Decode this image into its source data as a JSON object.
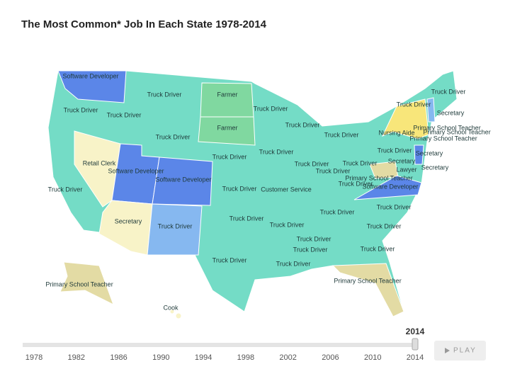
{
  "title": "The Most Common* Job In Each State 1978-2014",
  "map_labels": [
    "Software Developer",
    "Truck Driver",
    "Truck Driver",
    "Truck Driver",
    "Farmer",
    "Farmer",
    "Truck Driver",
    "Truck Driver",
    "Truck Driver",
    "Truck Driver",
    "Retail Clerk",
    "Software Developer",
    "Software Developer",
    "Truck Driver",
    "Truck Driver",
    "Truck Driver",
    "Truck Driver",
    "Truck Driver",
    "Truck Driver",
    "Customer Service",
    "Secretary",
    "Truck Driver",
    "Truck Driver",
    "Truck Driver",
    "Truck Driver",
    "Truck Driver",
    "Truck Driver",
    "Truck Driver",
    "Truck Driver",
    "Truck Driver",
    "Truck Driver",
    "Truck Driver",
    "Primary School Teacher",
    "Primary School Teacher",
    "Cook",
    "Truck Driver",
    "Truck Driver",
    "Secretary",
    "Primary School Teacher",
    "Nursing Aide",
    "Primary School Teacher",
    "Primary School Teacher",
    "Truck Driver",
    "Secretary",
    "Secretary",
    "Lawyer",
    "Secretary",
    "Primary School Teacher",
    "Software Developer",
    "Truck Driver",
    "Truck Driver"
  ],
  "slider": {
    "current": "2014",
    "ticks": [
      "1978",
      "1982",
      "1986",
      "1990",
      "1994",
      "1998",
      "2002",
      "2006",
      "2010",
      "2014"
    ]
  },
  "play_button": "PLAY"
}
